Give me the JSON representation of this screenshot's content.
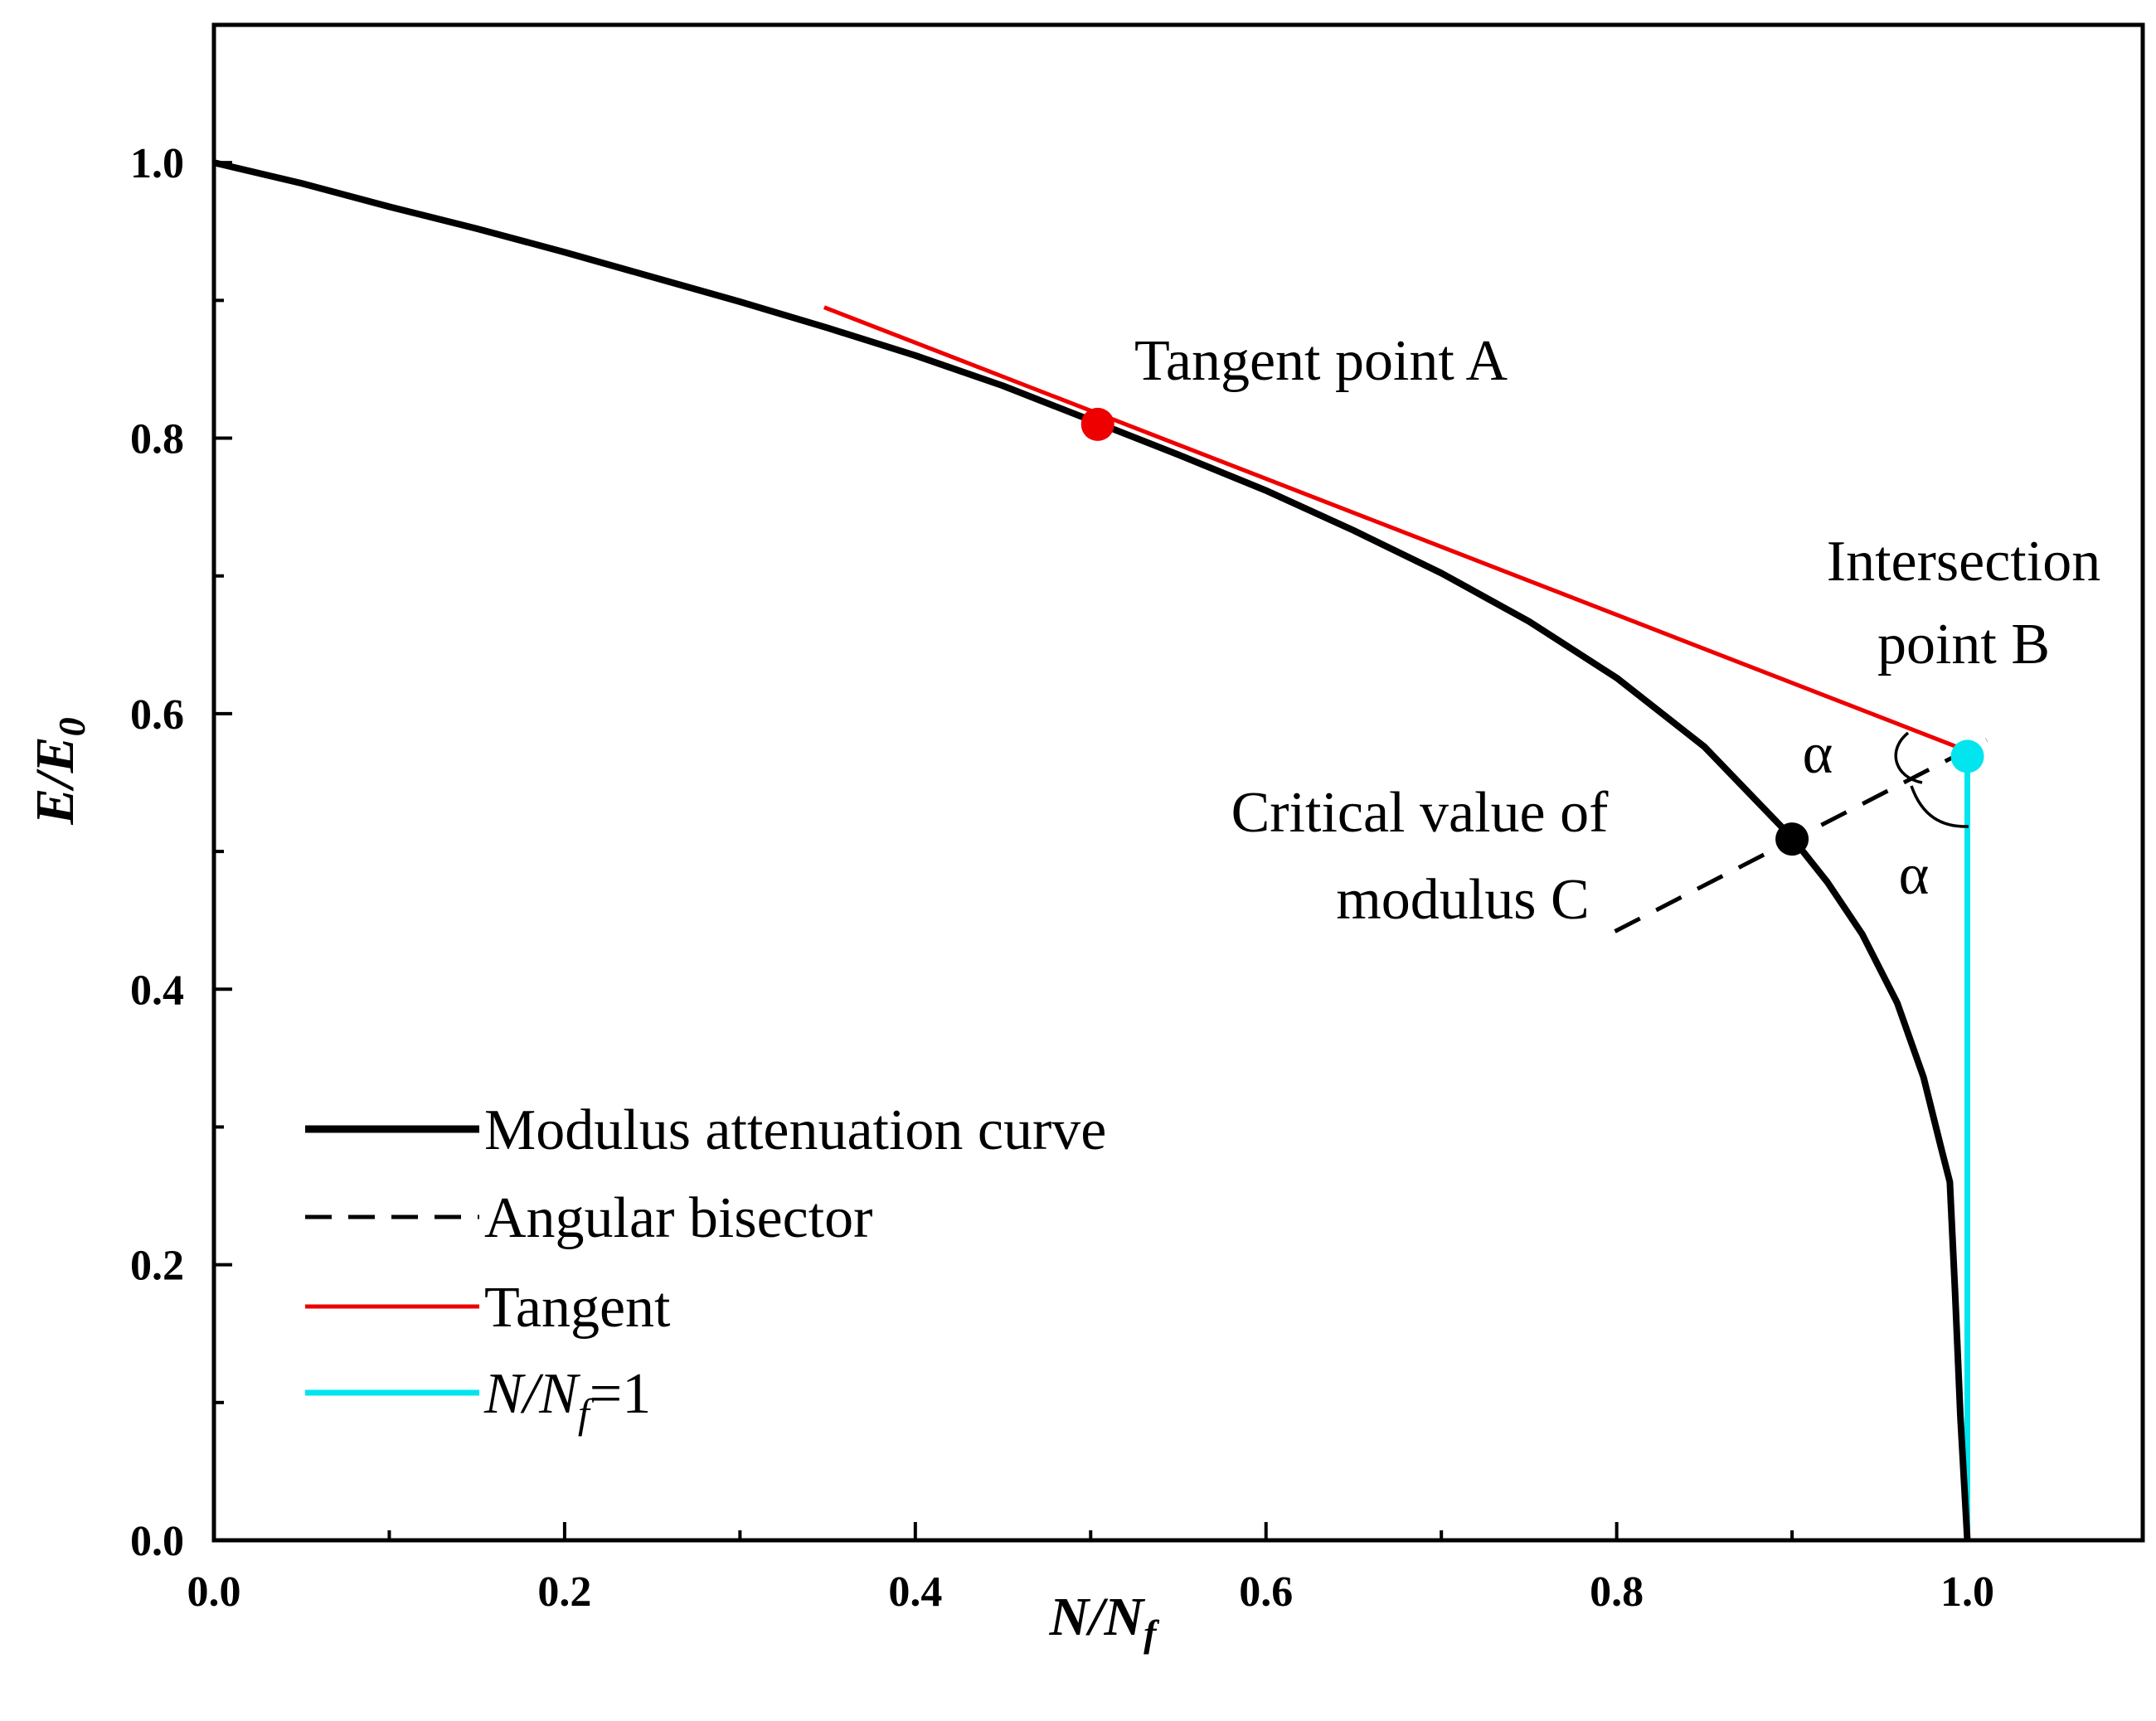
{
  "chart_data": {
    "type": "line",
    "title": "",
    "xlabel": {
      "main": "N/N",
      "sub": "f"
    },
    "ylabel": {
      "main": "E/E",
      "sub": "0"
    },
    "xlim": [
      0,
      1.1
    ],
    "ylim": [
      0,
      1.1
    ],
    "xticks": [
      0.0,
      0.2,
      0.4,
      0.6,
      0.8,
      1.0
    ],
    "xtick_labels": [
      "0.0",
      "0.2",
      "0.4",
      "0.6",
      "0.8",
      "1.0"
    ],
    "yticks": [
      0.0,
      0.2,
      0.4,
      0.6,
      0.8,
      1.0
    ],
    "ytick_labels": [
      "0.0",
      "0.2",
      "0.4",
      "0.6",
      "0.8",
      "1.0"
    ],
    "x_minor_ticks": [
      0.1,
      0.3,
      0.5,
      0.7,
      0.9
    ],
    "y_minor_ticks": [
      0.1,
      0.3,
      0.5,
      0.7,
      0.9
    ],
    "series": [
      {
        "name": "Modulus attenuation curve",
        "color": "#000000",
        "style": "solid",
        "x": [
          0.0,
          0.05,
          0.1,
          0.15,
          0.2,
          0.25,
          0.3,
          0.35,
          0.4,
          0.45,
          0.5,
          0.55,
          0.6,
          0.65,
          0.7,
          0.75,
          0.8,
          0.85,
          0.9,
          0.92,
          0.94,
          0.96,
          0.975,
          0.985,
          0.99,
          0.993,
          0.996,
          1.0
        ],
        "y": [
          1.0,
          0.985,
          0.968,
          0.952,
          0.935,
          0.917,
          0.899,
          0.88,
          0.86,
          0.838,
          0.813,
          0.788,
          0.762,
          0.733,
          0.702,
          0.667,
          0.626,
          0.576,
          0.51,
          0.478,
          0.44,
          0.39,
          0.336,
          0.285,
          0.26,
          0.18,
          0.09,
          0.0
        ]
      },
      {
        "name": "Angular bisector",
        "color": "#000000",
        "style": "dashed",
        "x": [
          0.799,
          1.011
        ],
        "y": [
          0.442,
          0.581
        ]
      },
      {
        "name": "Tangent",
        "color": "#ee0000",
        "style": "solid",
        "x": [
          0.348,
          1.0
        ],
        "y": [
          0.895,
          0.573
        ]
      },
      {
        "name": "N/Nf=1",
        "color": "#00e5ee",
        "style": "solid",
        "x": [
          1.0,
          1.0
        ],
        "y": [
          0.0,
          0.567
        ]
      }
    ],
    "points": [
      {
        "name": "Tangent point A",
        "x": 0.504,
        "y": 0.81,
        "color": "#ee0000"
      },
      {
        "name": "Intersection point B",
        "x": 1.0,
        "y": 0.569,
        "color": "#00e5ee"
      },
      {
        "name": "Critical value of modulus C",
        "x": 0.9,
        "y": 0.509,
        "color": "#000000"
      }
    ],
    "annotations": {
      "tangent_point_a": "Tangent point A",
      "intersection_b_line1": "Intersection",
      "intersection_b_line2": "point B",
      "critical_c_line1": "Critical value of",
      "critical_c_line2": "modulus C",
      "alpha_top": "α",
      "alpha_bottom": "α"
    },
    "legend": {
      "placement": "bottom-left",
      "entries": [
        {
          "label": "Modulus attenuation curve",
          "color": "#000000",
          "style": "solid-thick"
        },
        {
          "label": "Angular bisector",
          "color": "#000000",
          "style": "dashed"
        },
        {
          "label": "Tangent",
          "color": "#ee0000",
          "style": "solid"
        },
        {
          "label_main": "N/N",
          "label_sub": "f",
          "label_tail": "=1",
          "color": "#00e5ee",
          "style": "solid"
        }
      ]
    }
  }
}
